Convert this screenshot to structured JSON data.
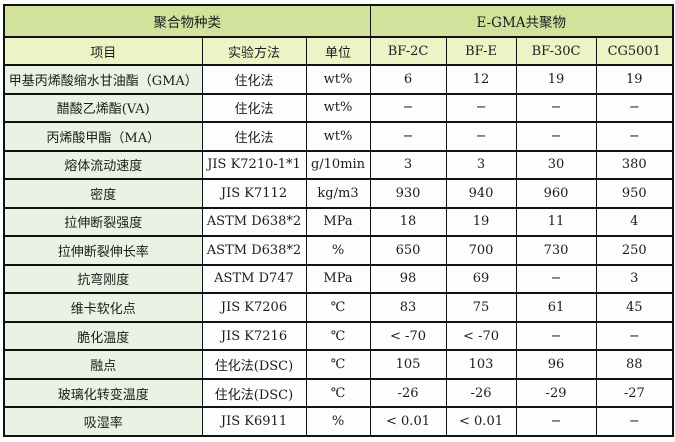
{
  "table": {
    "group_headers": [
      {
        "label": "聚合物种类",
        "colspan": 3
      },
      {
        "label": "E-GMA共聚物",
        "colspan": 4
      }
    ],
    "columns": [
      "项目",
      "实验方法",
      "单位",
      "BF-2C",
      "BF-E",
      "BF-30C",
      "CG5001"
    ],
    "rows": [
      [
        "甲基丙烯酸缩水甘油酯（GMA）",
        "住化法",
        "wt%",
        "6",
        "12",
        "19",
        "19"
      ],
      [
        "醋酸乙烯酯(VA)",
        "住化法",
        "wt%",
        "−",
        "−",
        "−",
        "−"
      ],
      [
        "丙烯酸甲酯（MA）",
        "住化法",
        "wt%",
        "−",
        "−",
        "−",
        "−"
      ],
      [
        "熔体流动速度",
        "JIS K7210-1*1",
        "g/10min",
        "3",
        "3",
        "30",
        "380"
      ],
      [
        "密度",
        "JIS K7112",
        "kg/m3",
        "930",
        "940",
        "960",
        "950"
      ],
      [
        "拉伸断裂强度",
        "ASTM D638*2",
        "MPa",
        "18",
        "19",
        "11",
        "4"
      ],
      [
        "拉伸断裂伸长率",
        "ASTM D638*2",
        "%",
        "650",
        "700",
        "730",
        "250"
      ],
      [
        "抗弯刚度",
        "ASTM D747",
        "MPa",
        "98",
        "69",
        "−",
        "3"
      ],
      [
        "维卡软化点",
        "JIS K7206",
        "℃",
        "83",
        "75",
        "61",
        "45"
      ],
      [
        "脆化温度",
        "JIS K7216",
        "℃",
        "< -70",
        "< -70",
        "−",
        "−"
      ],
      [
        "融点",
        "住化法(DSC)",
        "℃",
        "105",
        "103",
        "96",
        "88"
      ],
      [
        "玻璃化转变温度",
        "住化法(DSC)",
        "℃",
        "-26",
        "-26",
        "-29",
        "-27"
      ],
      [
        "吸湿率",
        "JIS K6911",
        "%",
        "< 0.01",
        "< 0.01",
        "−",
        "−"
      ]
    ],
    "colors": {
      "group_header_bg": "#d1e29c",
      "column_header_bg": "#ecf4c6",
      "row_label_bg": "#eaf3e3",
      "cell_bg": "#fdfdfb",
      "border": "#121212",
      "text": "#1c1c1c"
    }
  }
}
